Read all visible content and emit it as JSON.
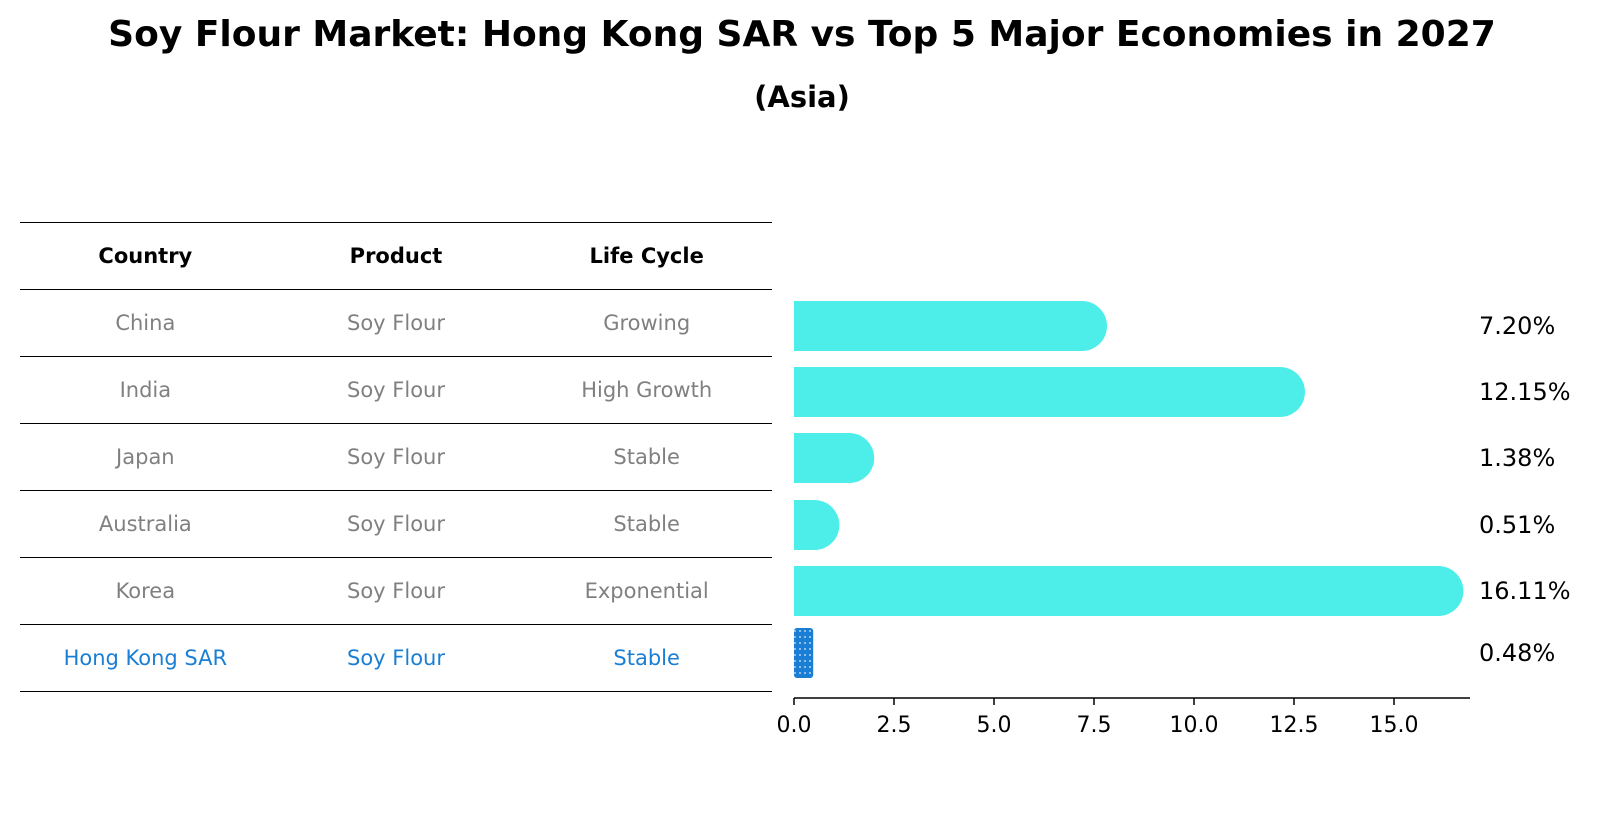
{
  "header": {
    "title": "Soy Flour Market: Hong Kong SAR vs Top 5 Major Economies in 2027",
    "subtitle": "(Asia)"
  },
  "table": {
    "columns": [
      "Country",
      "Product",
      "Life Cycle"
    ],
    "rows": [
      [
        "China",
        "Soy Flour",
        "Growing"
      ],
      [
        "India",
        "Soy Flour",
        "High Growth"
      ],
      [
        "Japan",
        "Soy Flour",
        "Stable"
      ],
      [
        "Australia",
        "Soy Flour",
        "Stable"
      ],
      [
        "Korea",
        "Soy Flour",
        "Exponential"
      ],
      [
        "Hong Kong SAR",
        "Soy Flour",
        "Stable"
      ]
    ],
    "highlight_row": 5,
    "highlight_color": "#1a7fd4",
    "text_color": "#808080"
  },
  "chart_data": {
    "type": "bar",
    "orientation": "horizontal",
    "categories": [
      "China",
      "India",
      "Japan",
      "Australia",
      "Korea",
      "Hong Kong SAR"
    ],
    "values": [
      7.2,
      12.15,
      1.38,
      0.51,
      16.11,
      0.48
    ],
    "value_labels": [
      "7.20%",
      "12.15%",
      "1.38%",
      "0.51%",
      "16.11%",
      "0.48%"
    ],
    "xlim": [
      0,
      17
    ],
    "xticks": [
      0.0,
      2.5,
      5.0,
      7.5,
      10.0,
      12.5,
      15.0
    ],
    "xtick_labels": [
      "0.0",
      "2.5",
      "5.0",
      "7.5",
      "10.0",
      "12.5",
      "15.0"
    ],
    "bar_color": "#4deeea",
    "highlight_color": "#1a7fd4",
    "highlight_index": 5,
    "grid": false
  }
}
